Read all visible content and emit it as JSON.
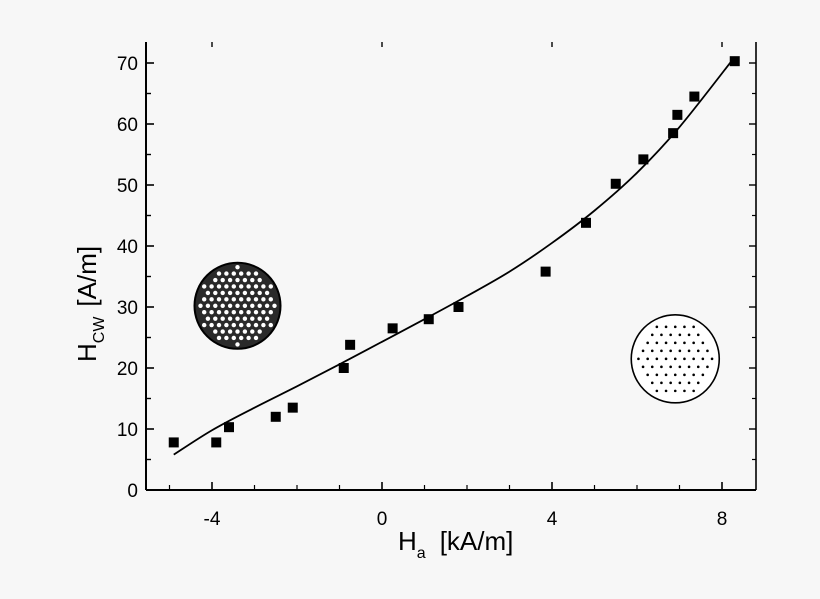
{
  "chart_data": {
    "type": "scatter",
    "title": "",
    "xlabel": {
      "symbol": "H",
      "subscript": "a",
      "unit": "[kA/m]"
    },
    "ylabel": {
      "symbol": "H",
      "subscript": "CW",
      "unit": "[A/m]"
    },
    "xlim": [
      -5.6,
      8.8
    ],
    "ylim": [
      0,
      74
    ],
    "x_ticks": [
      -4,
      0,
      4,
      8
    ],
    "x_tick_labels": [
      "-4",
      "0",
      "4",
      "8"
    ],
    "y_ticks": [
      0,
      10,
      20,
      30,
      40,
      50,
      60,
      70
    ],
    "y_tick_labels": [
      "0",
      "10",
      "20",
      "30",
      "40",
      "50",
      "60",
      "70"
    ],
    "grid": false,
    "legend": "none",
    "series": [
      {
        "kind": "points",
        "marker": "square",
        "color": "#000000",
        "x": [
          -4.9,
          -3.9,
          -3.6,
          -2.5,
          -2.1,
          -0.9,
          -0.75,
          0.25,
          1.1,
          1.8,
          3.85,
          4.8,
          5.5,
          6.15,
          6.85,
          6.95,
          7.35,
          8.3
        ],
        "y": [
          7.8,
          7.8,
          10.3,
          12.0,
          13.5,
          20.0,
          23.8,
          26.5,
          28.0,
          30.0,
          35.8,
          43.8,
          50.2,
          54.2,
          58.5,
          61.5,
          64.5,
          70.3
        ]
      },
      {
        "kind": "fit-curve",
        "color": "#000000",
        "x": [
          -4.9,
          -4.0,
          -3.0,
          -2.0,
          -1.0,
          0.0,
          1.0,
          2.0,
          3.0,
          4.0,
          5.0,
          6.0,
          7.0,
          8.3
        ],
        "y": [
          5.8,
          9.8,
          13.5,
          17.0,
          20.6,
          24.3,
          28.0,
          31.8,
          35.8,
          40.5,
          45.8,
          52.0,
          59.5,
          71.0
        ]
      }
    ],
    "insets": [
      {
        "name": "dense-bubble-lattice",
        "pattern": "dense dark dots",
        "x": -3.4,
        "y": 30.2
      },
      {
        "name": "sparse-dotted-disc",
        "pattern": "sparse light dots",
        "x": 6.9,
        "y": 21.5
      }
    ],
    "colors": {
      "background": "#f7f7f7",
      "ink": "#000000",
      "inset_fill": "#ffffff"
    }
  }
}
